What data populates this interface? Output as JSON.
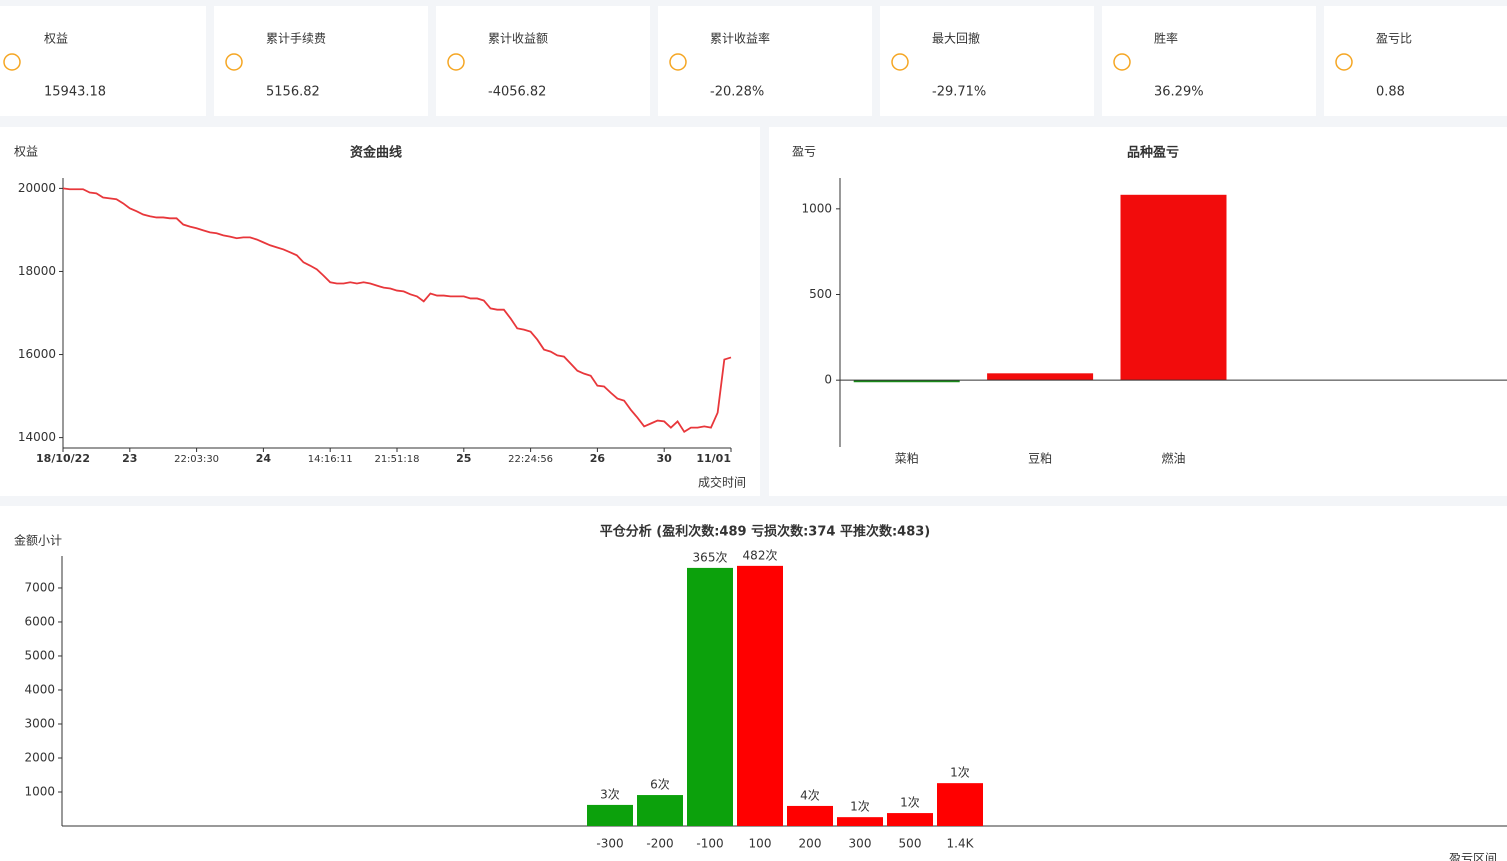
{
  "stats": [
    {
      "label": "权益",
      "value": "15943.18",
      "color": "#333333"
    },
    {
      "label": "累计手续费",
      "value": "5156.82",
      "color": "#333333"
    },
    {
      "label": "累计收益额",
      "value": "-4056.82",
      "color": "#1ec01e"
    },
    {
      "label": "累计收益率",
      "value": "-20.28%",
      "color": "#1ec01e"
    },
    {
      "label": "最大回撤",
      "value": "-29.71%",
      "color": "#333333"
    },
    {
      "label": "胜率",
      "value": "36.29%",
      "color": "#333333"
    },
    {
      "label": "盈亏比",
      "value": "0.88",
      "color": "#333333"
    }
  ],
  "chart_data": [
    {
      "type": "line",
      "title": "资金曲线",
      "y_label": "权益",
      "x_label": "成交时间",
      "color": "#e8373b",
      "values": [
        20000,
        19980,
        19980,
        19980,
        19900,
        19880,
        19780,
        19760,
        19740,
        19640,
        19520,
        19450,
        19370,
        19330,
        19300,
        19300,
        19280,
        19280,
        19130,
        19080,
        19040,
        18990,
        18940,
        18920,
        18870,
        18840,
        18800,
        18820,
        18820,
        18770,
        18700,
        18630,
        18580,
        18530,
        18460,
        18390,
        18220,
        18140,
        18050,
        17900,
        17740,
        17710,
        17710,
        17740,
        17710,
        17740,
        17710,
        17660,
        17610,
        17590,
        17540,
        17520,
        17450,
        17400,
        17280,
        17470,
        17420,
        17420,
        17400,
        17400,
        17400,
        17350,
        17350,
        17300,
        17110,
        17080,
        17080,
        16870,
        16630,
        16600,
        16550,
        16360,
        16120,
        16070,
        15980,
        15950,
        15780,
        15610,
        15540,
        15490,
        15250,
        15230,
        15080,
        14940,
        14890,
        14670,
        14480,
        14270,
        14340,
        14410,
        14390,
        14240,
        14390,
        14140,
        14240,
        14240,
        14270,
        14240,
        14600,
        15880,
        15930
      ],
      "xlim": [
        0,
        100
      ],
      "xticks": [
        {
          "value": 0,
          "label": "18/10/22"
        },
        {
          "value": 10,
          "label": "23"
        },
        {
          "value": 20,
          "label": "22:03:30"
        },
        {
          "value": 30,
          "label": "24"
        },
        {
          "value": 40,
          "label": "14:16:11"
        },
        {
          "value": 50,
          "label": "21:51:18"
        },
        {
          "value": 60,
          "label": "25"
        },
        {
          "value": 70,
          "label": "22:24:56"
        },
        {
          "value": 80,
          "label": "26"
        },
        {
          "value": 90,
          "label": "30"
        },
        {
          "value": 100,
          "label": "11/01"
        }
      ],
      "ylim": [
        13750,
        20250
      ],
      "yticks": [
        14000,
        16000,
        18000,
        20000
      ]
    },
    {
      "type": "bar",
      "title": "品种盈亏",
      "y_label": "盈亏",
      "categories": [
        "菜粕",
        "豆粕",
        "燃油"
      ],
      "values": [
        -12,
        40,
        1082
      ],
      "positive_color": "#f20c0c",
      "negative_color": "#1a8a1a",
      "tick_color": "#e00000",
      "ylim": [
        -390,
        1180
      ],
      "yticks": [
        0,
        500,
        1000
      ]
    },
    {
      "type": "bar",
      "title": "平仓分析 (盈利次数:489 亏损次数:374 平推次数:483)",
      "y_label": "金额小计",
      "x_label": "盈亏区间",
      "categories": [
        "-300",
        "-200",
        "-100",
        "100",
        "200",
        "300",
        "500",
        "1.4K"
      ],
      "values": [
        620,
        910,
        7590,
        7650,
        590,
        260,
        380,
        1260
      ],
      "bar_labels": [
        "3次",
        "6次",
        "365次",
        "482次",
        "4次",
        "1次",
        "1次",
        "1次"
      ],
      "colors": [
        "#0ca10c",
        "#0ca10c",
        "#0ca10c",
        "#ff0000",
        "#ff0000",
        "#ff0000",
        "#ff0000",
        "#ff0000"
      ],
      "ylim": [
        0,
        7940
      ],
      "yticks": [
        1000,
        2000,
        3000,
        4000,
        5000,
        6000,
        7000
      ]
    }
  ]
}
